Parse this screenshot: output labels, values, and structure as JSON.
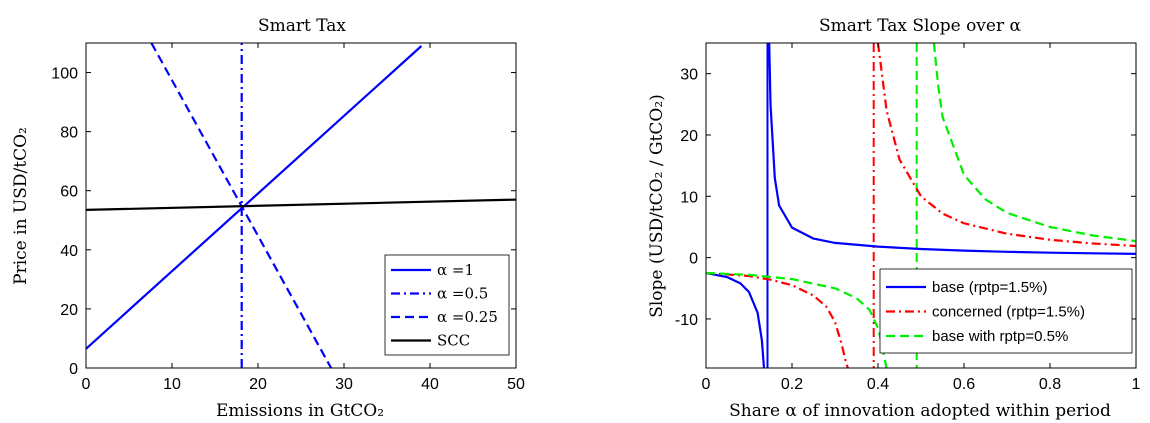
{
  "chart_data": [
    {
      "type": "line",
      "title": "Smart Tax",
      "xlabel": "Emissions in GtCO₂",
      "ylabel": "Price in USD/tCO₂",
      "xlim": [
        0,
        50
      ],
      "ylim": [
        0,
        110
      ],
      "xticks": [
        0,
        10,
        20,
        30,
        40,
        50
      ],
      "yticks": [
        0,
        20,
        40,
        60,
        80,
        100
      ],
      "legend_position": "bottom-right",
      "series": [
        {
          "name": "α =1",
          "style": "solid",
          "color": "#0000ff",
          "x": [
            0,
            39
          ],
          "y": [
            6.5,
            109
          ]
        },
        {
          "name": "α =0.5",
          "style": "dashdot",
          "color": "#0000ff",
          "x": [
            18.1,
            18.1
          ],
          "y": [
            0,
            110
          ]
        },
        {
          "name": "α =0.25",
          "style": "dashed",
          "color": "#0000ff",
          "x": [
            7.6,
            28.5
          ],
          "y": [
            110,
            0
          ]
        },
        {
          "name": "SCC",
          "style": "solid",
          "color": "#000000",
          "x": [
            0,
            50
          ],
          "y": [
            53.5,
            57
          ]
        }
      ]
    },
    {
      "type": "line",
      "title": "Smart Tax Slope over α",
      "xlabel": "Share α of innovation adopted within period",
      "ylabel": "Slope (USD/tCO₂ / GtCO₂)",
      "xlim": [
        0,
        1
      ],
      "ylim": [
        -18,
        35
      ],
      "xticks": [
        0,
        0.2,
        0.4,
        0.6,
        0.8,
        1
      ],
      "xtick_labels": [
        "0",
        "0.2",
        "0.4",
        "0.6",
        "0.8",
        "1"
      ],
      "yticks": [
        -10,
        0,
        10,
        20,
        30
      ],
      "legend_position": "bottom-right",
      "series": [
        {
          "name": "base (rptp=1.5%)",
          "style": "solid",
          "color": "#0000ff",
          "x": [
            0,
            0.05,
            0.08,
            0.1,
            0.12,
            0.13,
            0.135,
            0.14,
            0.147,
            0.15,
            0.16,
            0.17,
            0.2,
            0.25,
            0.3,
            0.4,
            0.5,
            0.6,
            0.7,
            0.8,
            0.9,
            1.0
          ],
          "y": [
            -2.5,
            -3.2,
            -4.2,
            -5.6,
            -9.0,
            -13.5,
            -18,
            null,
            35,
            25,
            13,
            8.5,
            4.9,
            3.1,
            2.4,
            1.8,
            1.4,
            1.15,
            0.95,
            0.8,
            0.7,
            0.6
          ]
        },
        {
          "name": "concerned (rptp=1.5%)",
          "style": "dashdot",
          "color": "#ff0000",
          "x": [
            0,
            0.1,
            0.15,
            0.2,
            0.25,
            0.28,
            0.3,
            0.315,
            0.325,
            0.33,
            0.39,
            0.4,
            0.42,
            0.45,
            0.5,
            0.55,
            0.6,
            0.7,
            0.8,
            0.9,
            1.0
          ],
          "y": [
            -2.5,
            -3.0,
            -3.6,
            -4.5,
            -6.2,
            -8.0,
            -10.5,
            -14,
            -17,
            -18,
            null,
            35,
            24,
            16,
            10,
            7.2,
            5.6,
            3.9,
            2.9,
            2.3,
            1.9
          ]
        },
        {
          "name": "base with rptp=0.5%",
          "style": "dashed",
          "color": "#00ee00",
          "x": [
            0,
            0.1,
            0.2,
            0.3,
            0.35,
            0.38,
            0.4,
            0.41,
            0.415,
            0.42,
            0.495,
            0.53,
            0.54,
            0.55,
            0.6,
            0.65,
            0.7,
            0.8,
            0.9,
            1.0
          ],
          "y": [
            -2.5,
            -2.8,
            -3.5,
            -5.0,
            -6.6,
            -8.5,
            -11.5,
            -14.5,
            -16.5,
            -18,
            null,
            35,
            28,
            23,
            13.5,
            9.5,
            7.3,
            5.0,
            3.6,
            2.7
          ]
        }
      ],
      "asymptotes": [
        {
          "x": 0.143,
          "color": "#0000ff",
          "style": "solid"
        },
        {
          "x": 0.39,
          "color": "#ff0000",
          "style": "dashdot"
        },
        {
          "x": 0.49,
          "color": "#00ee00",
          "style": "dashed"
        }
      ]
    }
  ]
}
